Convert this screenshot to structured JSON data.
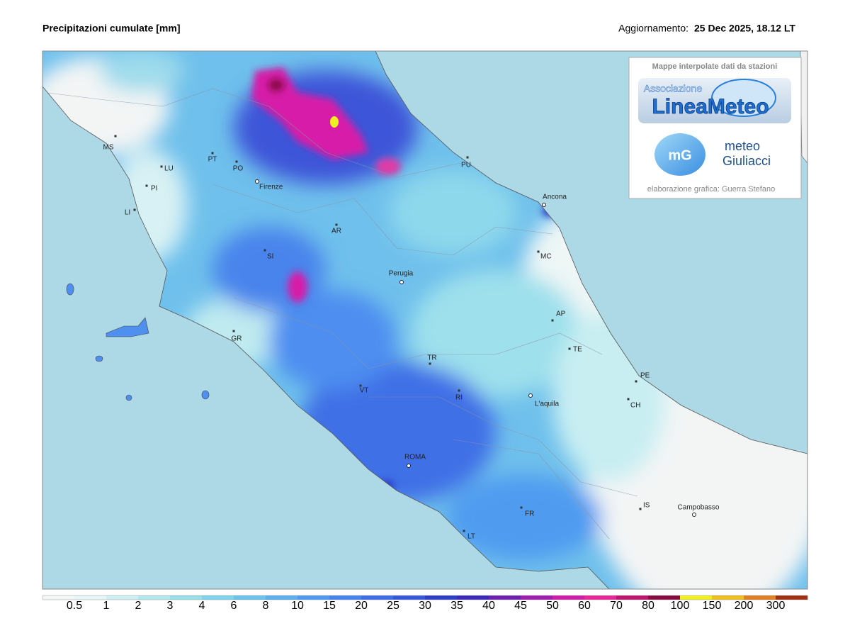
{
  "header": {
    "title": "Precipitazioni cumulate [mm]",
    "update_label": "Aggiornamento:",
    "update_value": "25 Dec 2025, 18.12 LT"
  },
  "credits": {
    "heading": "Mappe interpolate dati da stazioni",
    "logo_small": "Associazione",
    "logo_main": "LineaMeteo",
    "badge": "mG",
    "brand_top": "meteo",
    "brand_bottom": "Giuliacci",
    "footer": "elaborazione grafica: Guerra Stefano"
  },
  "places": [
    "MS",
    "LU",
    "PI",
    "LI",
    "PT",
    "PO",
    "Firenze",
    "AR",
    "SI",
    "GR",
    "Perugia",
    "PU",
    "Ancona",
    "MC",
    "AP",
    "TE",
    "PE",
    "CH",
    "TR",
    "VT",
    "RI",
    "L'aquila",
    "ROMA",
    "FR",
    "LT",
    "IS",
    "Campobasso"
  ],
  "legend": {
    "values": [
      0.5,
      1,
      2,
      3,
      4,
      6,
      8,
      10,
      15,
      20,
      25,
      30,
      35,
      40,
      45,
      50,
      60,
      70,
      80,
      100,
      150,
      200,
      300
    ],
    "colors": [
      "#f4f6f6",
      "#e6f6f6",
      "#cdeff1",
      "#b2e8ee",
      "#98dfea",
      "#7ed4ec",
      "#69c3ec",
      "#5baff0",
      "#4d9af0",
      "#4583ee",
      "#3d6de8",
      "#3557dd",
      "#2c3fcb",
      "#3b28b8",
      "#6c1fb0",
      "#a01cb0",
      "#d11ca8",
      "#e8289a",
      "#c01470",
      "#8a0a40",
      "#f0f020",
      "#f0c020",
      "#e08020",
      "#a03010"
    ]
  }
}
